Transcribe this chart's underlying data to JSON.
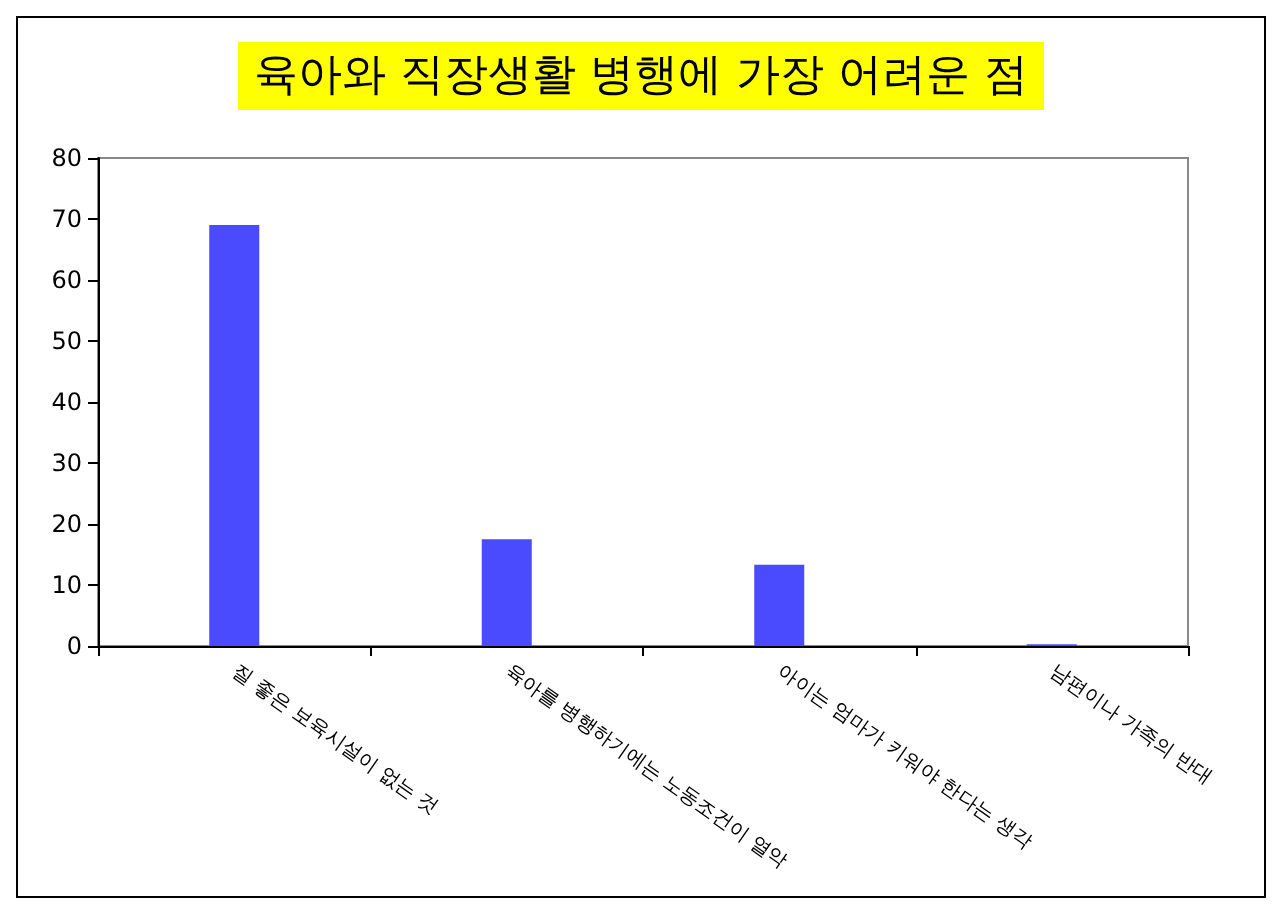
{
  "chart_data": {
    "type": "bar",
    "title": "육아와 직장생활 병행에 가장 어려운 점",
    "categories": [
      "질 좋은 보육시설이 없는 것",
      "육아를 병행하기에는 노동조건이 열악",
      "아이는 엄마가 키워야 한다는 생각",
      "남편이나 가족의 반대"
    ],
    "values": [
      69,
      17.5,
      13.3,
      0.3
    ],
    "color": "#4a4aff",
    "ylim": [
      0,
      80
    ],
    "yticks": [
      0,
      10,
      20,
      30,
      40,
      50,
      60,
      70,
      80
    ],
    "grid": false
  }
}
